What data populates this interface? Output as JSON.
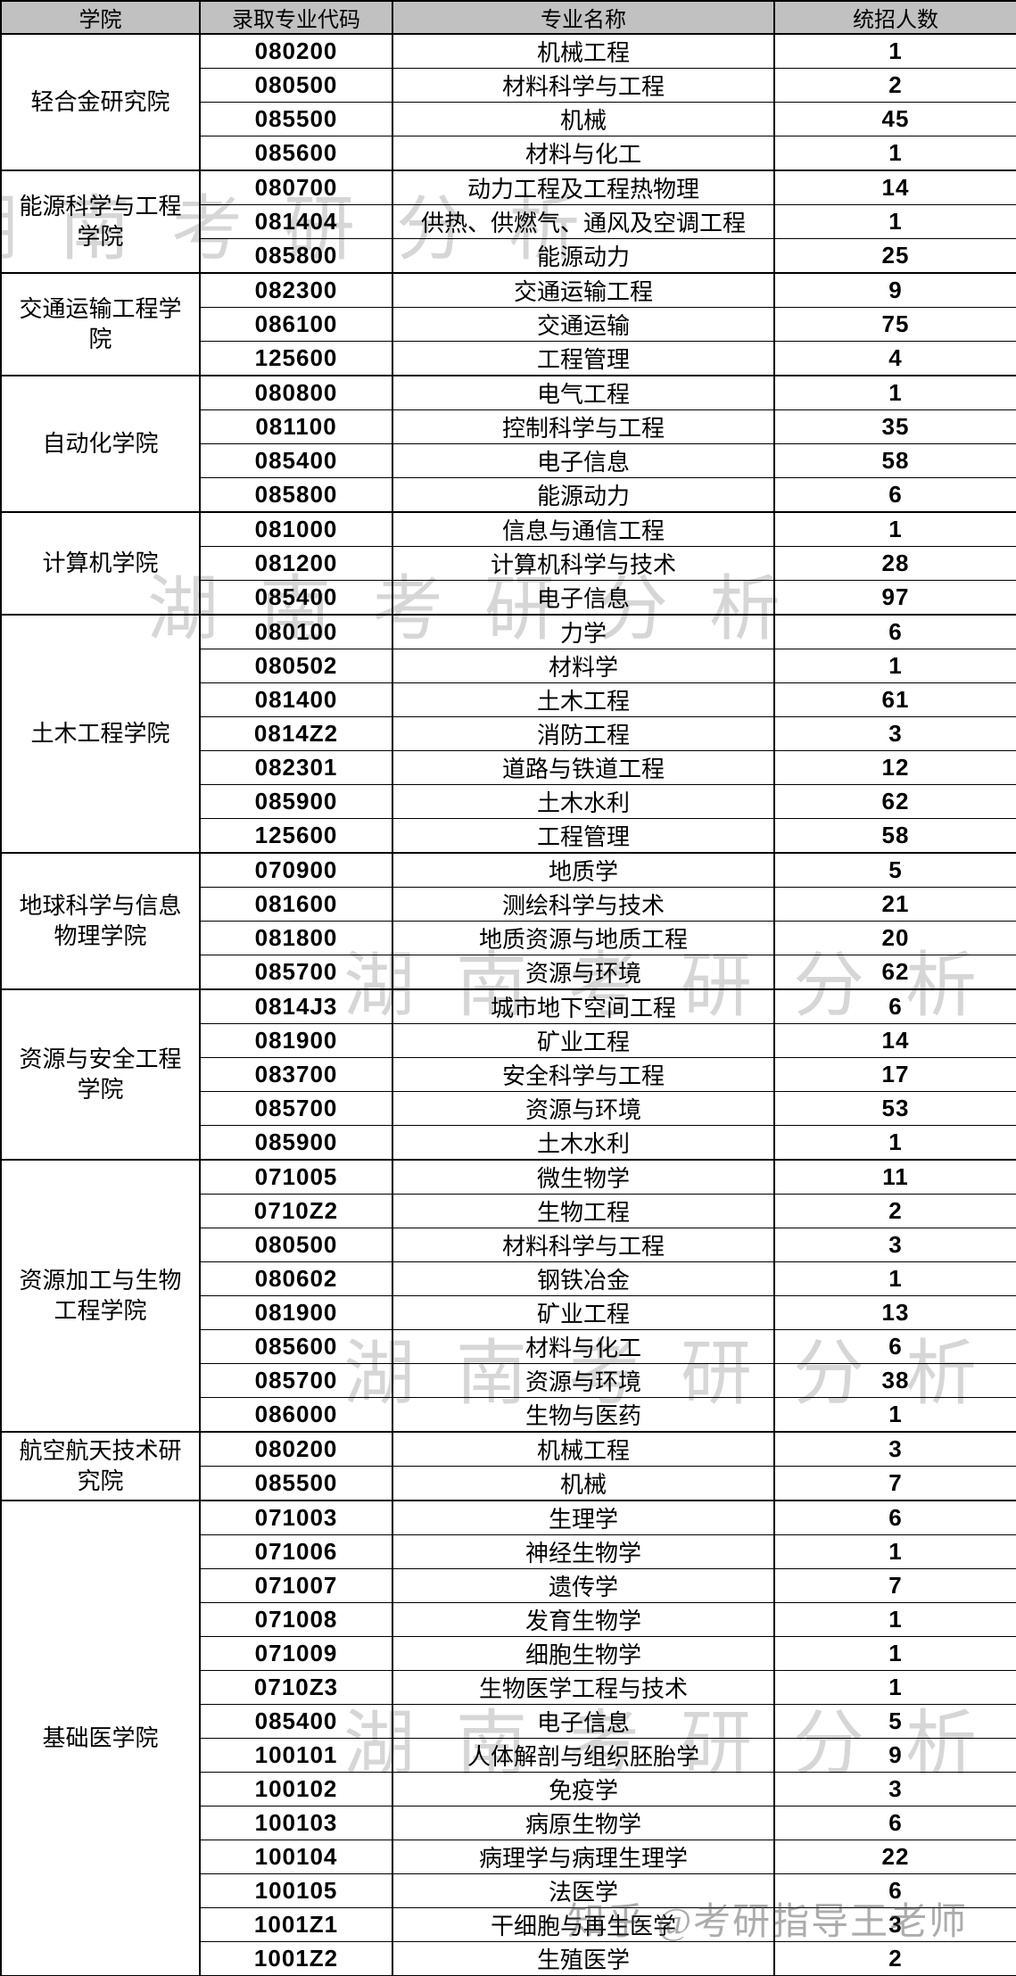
{
  "table": {
    "headers": [
      "学院",
      "录取专业代码",
      "专业名称",
      "统招人数"
    ],
    "groups": [
      {
        "college": "轻合金研究院",
        "rows": [
          {
            "code": "080200",
            "major": "机械工程",
            "count": "1"
          },
          {
            "code": "080500",
            "major": "材料科学与工程",
            "count": "2"
          },
          {
            "code": "085500",
            "major": "机械",
            "count": "45"
          },
          {
            "code": "085600",
            "major": "材料与化工",
            "count": "1"
          }
        ]
      },
      {
        "college": "能源科学与工程学院",
        "rows": [
          {
            "code": "080700",
            "major": "动力工程及工程热物理",
            "count": "14"
          },
          {
            "code": "081404",
            "major": "供热、供燃气、通风及空调工程",
            "count": "1"
          },
          {
            "code": "085800",
            "major": "能源动力",
            "count": "25"
          }
        ]
      },
      {
        "college": "交通运输工程学院",
        "rows": [
          {
            "code": "082300",
            "major": "交通运输工程",
            "count": "9"
          },
          {
            "code": "086100",
            "major": "交通运输",
            "count": "75"
          },
          {
            "code": "125600",
            "major": "工程管理",
            "count": "4"
          }
        ]
      },
      {
        "college": "自动化学院",
        "rows": [
          {
            "code": "080800",
            "major": "电气工程",
            "count": "1"
          },
          {
            "code": "081100",
            "major": "控制科学与工程",
            "count": "35"
          },
          {
            "code": "085400",
            "major": "电子信息",
            "count": "58"
          },
          {
            "code": "085800",
            "major": "能源动力",
            "count": "6"
          }
        ]
      },
      {
        "college": "计算机学院",
        "rows": [
          {
            "code": "081000",
            "major": "信息与通信工程",
            "count": "1"
          },
          {
            "code": "081200",
            "major": "计算机科学与技术",
            "count": "28"
          },
          {
            "code": "085400",
            "major": "电子信息",
            "count": "97"
          }
        ]
      },
      {
        "college": "土木工程学院",
        "rows": [
          {
            "code": "080100",
            "major": "力学",
            "count": "6"
          },
          {
            "code": "080502",
            "major": "材料学",
            "count": "1"
          },
          {
            "code": "081400",
            "major": "土木工程",
            "count": "61"
          },
          {
            "code": "0814Z2",
            "major": "消防工程",
            "count": "3"
          },
          {
            "code": "082301",
            "major": "道路与铁道工程",
            "count": "12"
          },
          {
            "code": "085900",
            "major": "土木水利",
            "count": "62"
          },
          {
            "code": "125600",
            "major": "工程管理",
            "count": "58"
          }
        ]
      },
      {
        "college": "地球科学与信息物理学院",
        "rows": [
          {
            "code": "070900",
            "major": "地质学",
            "count": "5"
          },
          {
            "code": "081600",
            "major": "测绘科学与技术",
            "count": "21"
          },
          {
            "code": "081800",
            "major": "地质资源与地质工程",
            "count": "20"
          },
          {
            "code": "085700",
            "major": "资源与环境",
            "count": "62"
          }
        ]
      },
      {
        "college": "资源与安全工程学院",
        "rows": [
          {
            "code": "0814J3",
            "major": "城市地下空间工程",
            "count": "6"
          },
          {
            "code": "081900",
            "major": "矿业工程",
            "count": "14"
          },
          {
            "code": "083700",
            "major": "安全科学与工程",
            "count": "17"
          },
          {
            "code": "085700",
            "major": "资源与环境",
            "count": "53"
          },
          {
            "code": "085900",
            "major": "土木水利",
            "count": "1"
          }
        ]
      },
      {
        "college": "资源加工与生物工程学院",
        "rows": [
          {
            "code": "071005",
            "major": "微生物学",
            "count": "11"
          },
          {
            "code": "0710Z2",
            "major": "生物工程",
            "count": "2"
          },
          {
            "code": "080500",
            "major": "材料科学与工程",
            "count": "3"
          },
          {
            "code": "080602",
            "major": "钢铁冶金",
            "count": "1"
          },
          {
            "code": "081900",
            "major": "矿业工程",
            "count": "13"
          },
          {
            "code": "085600",
            "major": "材料与化工",
            "count": "6"
          },
          {
            "code": "085700",
            "major": "资源与环境",
            "count": "38"
          },
          {
            "code": "086000",
            "major": "生物与医药",
            "count": "1"
          }
        ]
      },
      {
        "college": "航空航天技术研究院",
        "rows": [
          {
            "code": "080200",
            "major": "机械工程",
            "count": "3"
          },
          {
            "code": "085500",
            "major": "机械",
            "count": "7"
          }
        ]
      },
      {
        "college": "基础医学院",
        "rows": [
          {
            "code": "071003",
            "major": "生理学",
            "count": "6"
          },
          {
            "code": "071006",
            "major": "神经生物学",
            "count": "1"
          },
          {
            "code": "071007",
            "major": "遗传学",
            "count": "7"
          },
          {
            "code": "071008",
            "major": "发育生物学",
            "count": "1"
          },
          {
            "code": "071009",
            "major": "细胞生物学",
            "count": "1"
          },
          {
            "code": "0710Z3",
            "major": "生物医学工程与技术",
            "count": "1"
          },
          {
            "code": "085400",
            "major": "电子信息",
            "count": "5"
          },
          {
            "code": "100101",
            "major": "人体解剖与组织胚胎学",
            "count": "9"
          },
          {
            "code": "100102",
            "major": "免疫学",
            "count": "3"
          },
          {
            "code": "100103",
            "major": "病原生物学",
            "count": "6"
          },
          {
            "code": "100104",
            "major": "病理学与病理生理学",
            "count": "22"
          },
          {
            "code": "100105",
            "major": "法医学",
            "count": "6"
          },
          {
            "code": "1001Z1",
            "major": "干细胞与再生医学",
            "count": "3"
          },
          {
            "code": "1001Z2",
            "major": "生殖医学",
            "count": "2"
          }
        ]
      }
    ]
  },
  "watermarks": {
    "brand": "湖南考研分析",
    "credit": "知乎 @考研指导王老师"
  }
}
